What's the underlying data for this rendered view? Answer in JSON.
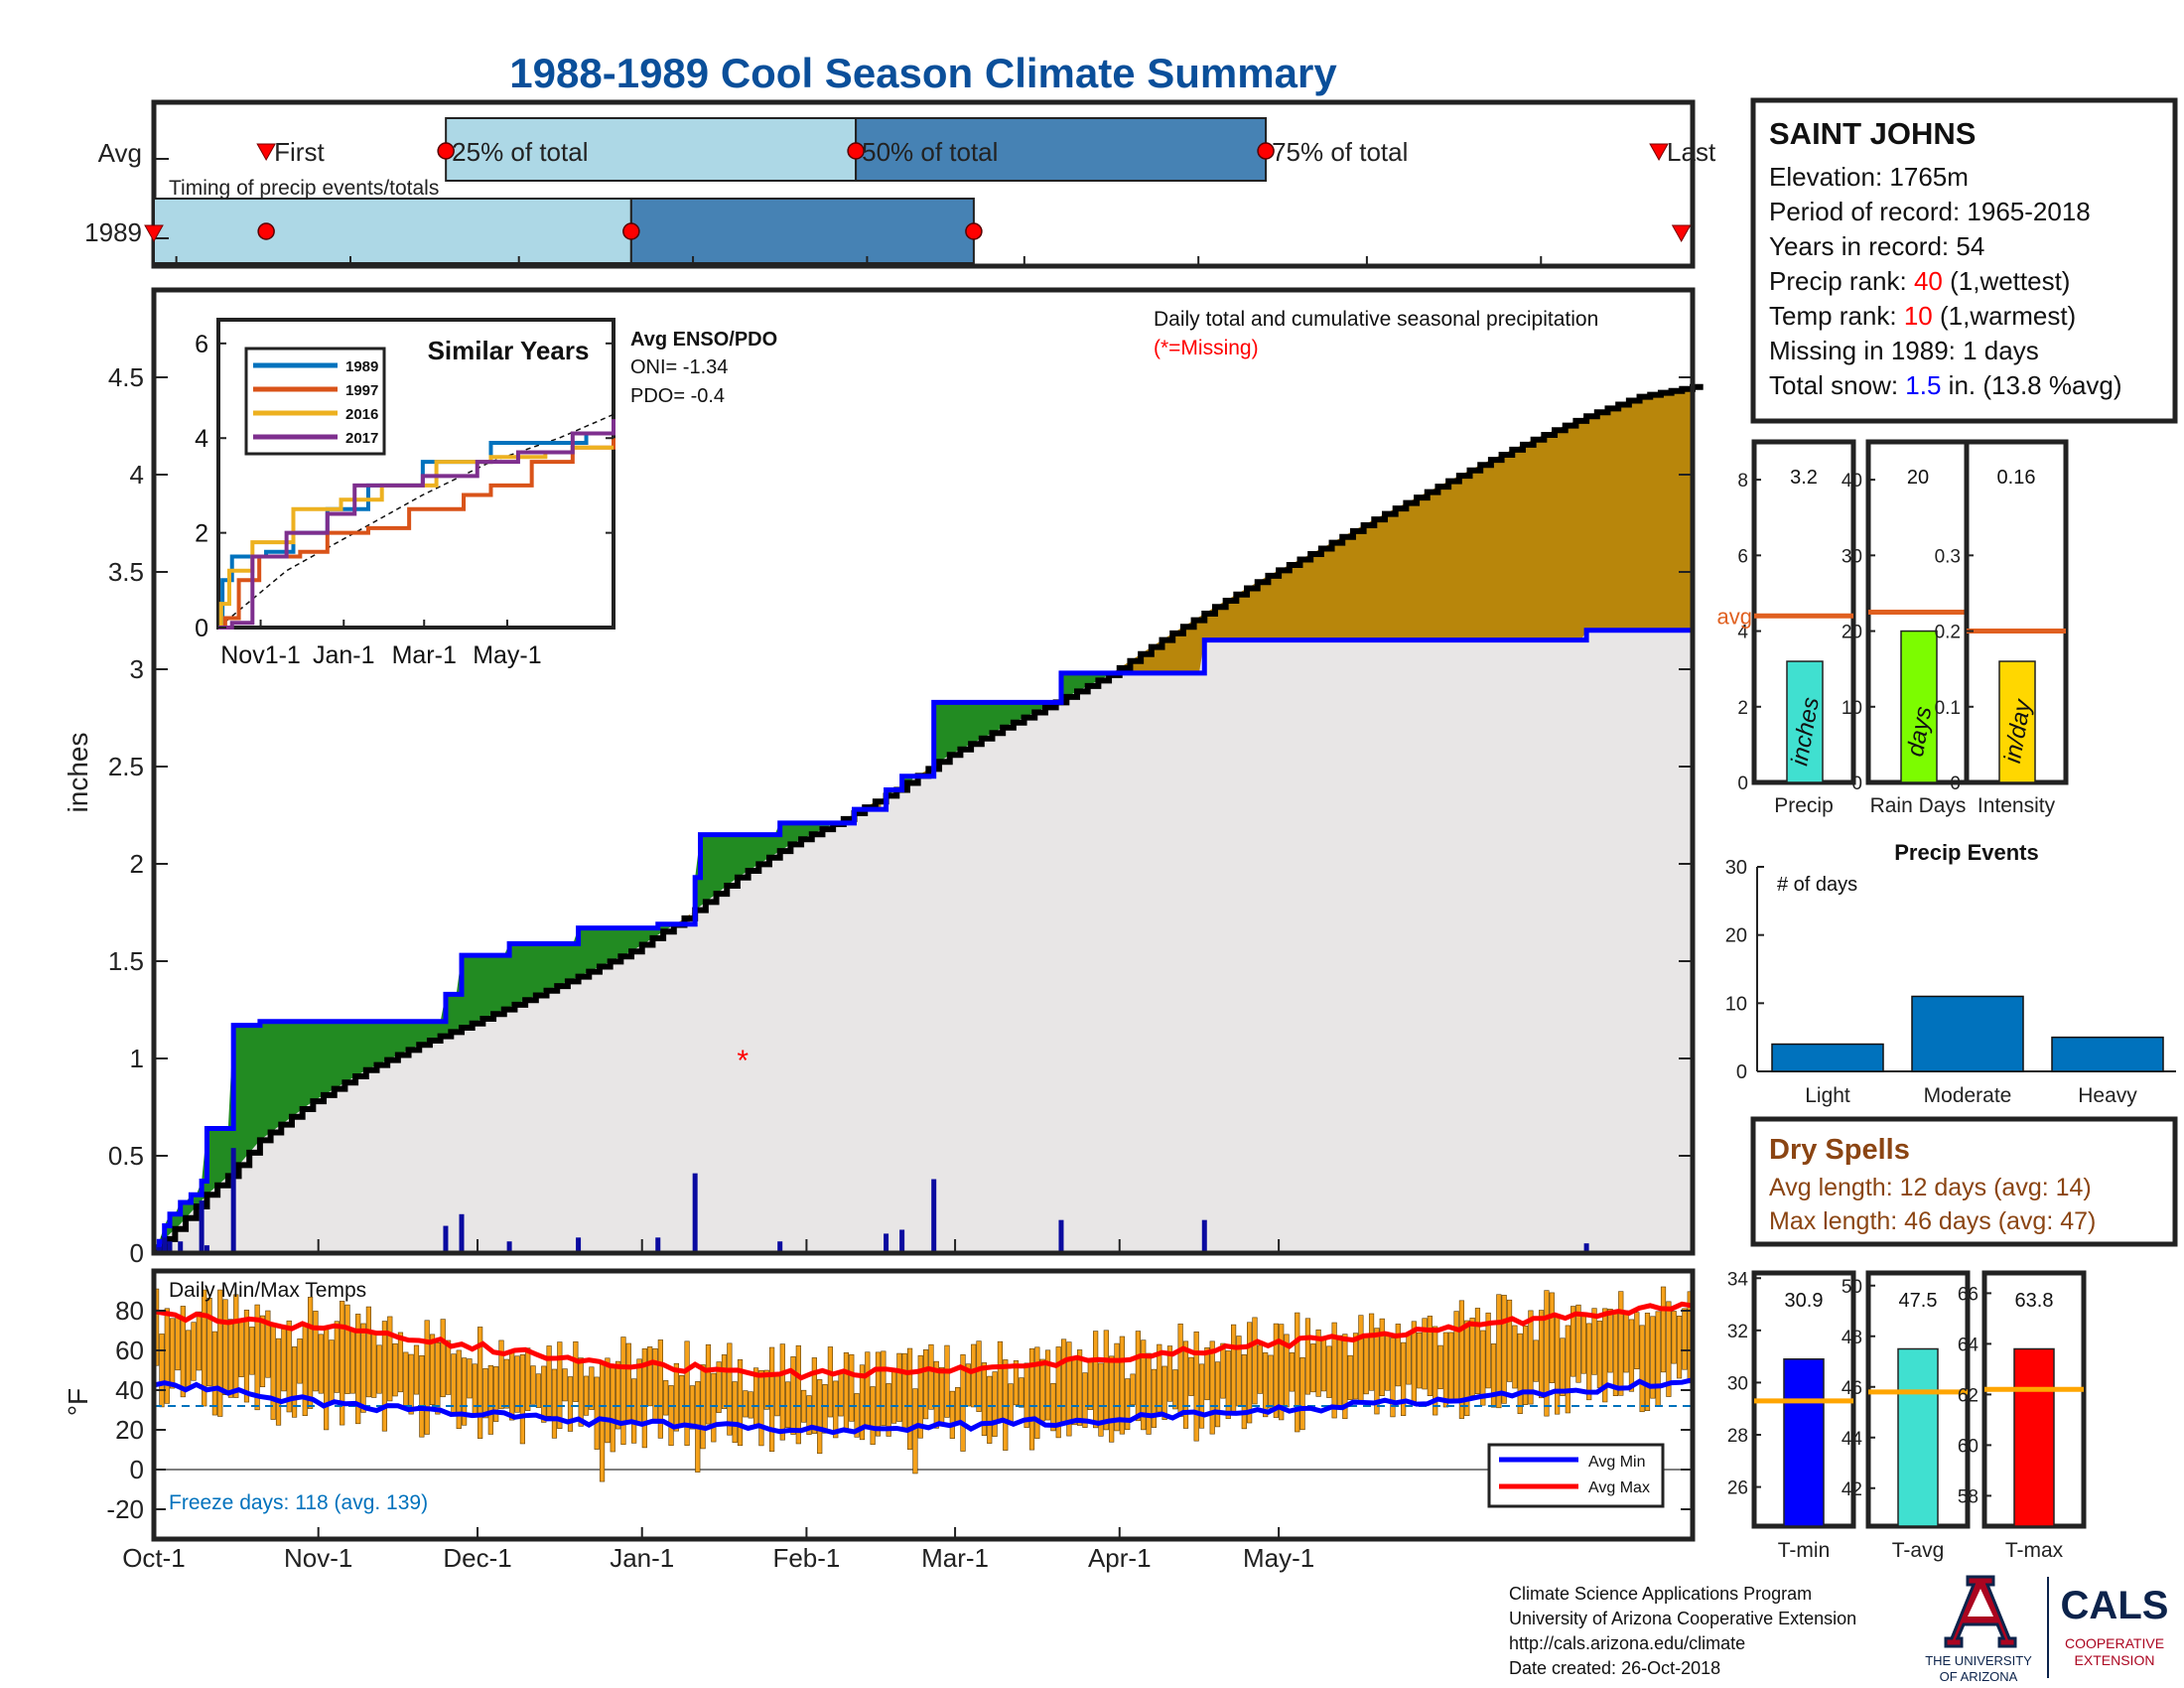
{
  "title": "1988-1989 Cool Season Climate Summary",
  "colors": {
    "title": "#0a4f9a",
    "light_box": "#add8e6",
    "dark_box": "#4682b4",
    "marker": "#ff0000",
    "below_avg_fill": "#228b22",
    "above_avg_fill": "#b8860b",
    "background_fill": "#e8e6e6",
    "cumulative_line": "#0000ff",
    "daily_bar": "#0a0aa0",
    "temp_bar": "#f5a11a",
    "avg_min": "#0000ff",
    "avg_max": "#ff0000",
    "avg_line": "#e06020",
    "snow_value": "#0000ff",
    "rank_value": "#ff0000",
    "dry_spells": "#8b4513",
    "precip_bar": "#40e0d0",
    "days_bar": "#7cfc00",
    "intensity_bar": "#ffd700",
    "events_bar": "#0072bd",
    "tmin_bar": "#0000ff",
    "tavg_bar": "#40e0d0",
    "tmax_bar": "#ff0000",
    "tbar_avg_line": "#ffa500",
    "freeze_text": "#0072bd"
  },
  "timing": {
    "row_labels": [
      "Avg",
      "1989"
    ],
    "marker_labels": {
      "first": "First",
      "p25": "25% of total",
      "p50": "50% of total",
      "p75": "75% of total",
      "last": "Last"
    },
    "note": "Timing of precip events/totals",
    "avg_days": {
      "first": 16,
      "p25": 48,
      "p50": 121,
      "p75": 194,
      "last": 264
    },
    "year_days": {
      "first": -4,
      "p25": 16,
      "p50": 81,
      "p75": 142,
      "last": 268
    }
  },
  "precip_panel": {
    "ylabel": "inches",
    "yticks": [
      "0",
      "0.5",
      "1",
      "1.5",
      "2",
      "2.5",
      "3",
      "3.5",
      "4",
      "4.5"
    ],
    "annotation": "Daily total and cumulative seasonal precipitation",
    "missing_note": "(*=Missing)",
    "missing_marker": "*",
    "missing_point": {
      "day": 111,
      "value": 1.0
    },
    "avg_cumulative": [
      [
        0,
        0.02
      ],
      [
        5,
        0.15
      ],
      [
        10,
        0.3
      ],
      [
        15,
        0.42
      ],
      [
        20,
        0.58
      ],
      [
        30,
        0.78
      ],
      [
        40,
        0.94
      ],
      [
        50,
        1.07
      ],
      [
        60,
        1.18
      ],
      [
        70,
        1.3
      ],
      [
        80,
        1.42
      ],
      [
        90,
        1.55
      ],
      [
        100,
        1.72
      ],
      [
        110,
        1.93
      ],
      [
        120,
        2.1
      ],
      [
        130,
        2.23
      ],
      [
        140,
        2.38
      ],
      [
        150,
        2.56
      ],
      [
        160,
        2.7
      ],
      [
        170,
        2.83
      ],
      [
        180,
        2.97
      ],
      [
        190,
        3.15
      ],
      [
        200,
        3.32
      ],
      [
        210,
        3.48
      ],
      [
        220,
        3.62
      ],
      [
        230,
        3.77
      ],
      [
        240,
        3.91
      ],
      [
        250,
        4.05
      ],
      [
        260,
        4.18
      ],
      [
        270,
        4.3
      ],
      [
        280,
        4.4
      ],
      [
        290,
        4.45
      ]
    ],
    "cumulative_1989": [
      [
        0,
        0.03
      ],
      [
        1,
        0.06
      ],
      [
        2,
        0.14
      ],
      [
        3,
        0.2
      ],
      [
        5,
        0.26
      ],
      [
        7,
        0.3
      ],
      [
        9,
        0.37
      ],
      [
        10,
        0.64
      ],
      [
        15,
        0.64
      ],
      [
        15,
        1.17
      ],
      [
        20,
        1.19
      ],
      [
        55,
        1.19
      ],
      [
        55,
        1.33
      ],
      [
        58,
        1.33
      ],
      [
        58,
        1.53
      ],
      [
        67,
        1.53
      ],
      [
        67,
        1.59
      ],
      [
        80,
        1.59
      ],
      [
        80,
        1.67
      ],
      [
        95,
        1.67
      ],
      [
        95,
        1.69
      ],
      [
        102,
        1.69
      ],
      [
        102,
        1.93
      ],
      [
        103,
        2.15
      ],
      [
        118,
        2.15
      ],
      [
        118,
        2.21
      ],
      [
        132,
        2.21
      ],
      [
        132,
        2.28
      ],
      [
        138,
        2.28
      ],
      [
        138,
        2.38
      ],
      [
        141,
        2.38
      ],
      [
        141,
        2.45
      ],
      [
        147,
        2.45
      ],
      [
        147,
        2.83
      ],
      [
        171,
        2.83
      ],
      [
        171,
        2.98
      ],
      [
        198,
        2.98
      ],
      [
        198,
        3.15
      ],
      [
        270,
        3.15
      ],
      [
        270,
        3.2
      ],
      [
        290,
        3.2
      ]
    ],
    "daily_1989": [
      [
        1,
        0.03
      ],
      [
        2,
        0.08
      ],
      [
        3,
        0.06
      ],
      [
        5,
        0.06
      ],
      [
        9,
        0.27
      ],
      [
        10,
        0.04
      ],
      [
        15,
        0.54
      ],
      [
        55,
        0.14
      ],
      [
        58,
        0.2
      ],
      [
        67,
        0.06
      ],
      [
        80,
        0.08
      ],
      [
        95,
        0.08
      ],
      [
        102,
        0.41
      ],
      [
        118,
        0.06
      ],
      [
        138,
        0.1
      ],
      [
        141,
        0.12
      ],
      [
        147,
        0.38
      ],
      [
        171,
        0.17
      ],
      [
        198,
        0.17
      ],
      [
        270,
        0.05
      ]
    ]
  },
  "inset": {
    "title": "Similar Years",
    "legend": [
      "1989",
      "1997",
      "2016",
      "2017"
    ],
    "legend_colors": [
      "#0072bd",
      "#d95319",
      "#edb120",
      "#7e2f8e"
    ],
    "yticks": [
      "0",
      "2",
      "4",
      "6"
    ],
    "xticks": [
      "Nov1-1",
      "Jan-1",
      "Mar-1",
      "May-1"
    ],
    "series": [
      {
        "name": "1989",
        "points": [
          [
            0,
            0
          ],
          [
            3,
            1
          ],
          [
            10,
            1.5
          ],
          [
            35,
            1.6
          ],
          [
            55,
            2.0
          ],
          [
            80,
            2.5
          ],
          [
            110,
            3.0
          ],
          [
            150,
            3.5
          ],
          [
            200,
            3.9
          ],
          [
            270,
            4.1
          ],
          [
            290,
            4.1
          ]
        ]
      },
      {
        "name": "1997",
        "points": [
          [
            0,
            0
          ],
          [
            5,
            0.2
          ],
          [
            15,
            1.0
          ],
          [
            30,
            1.5
          ],
          [
            60,
            1.6
          ],
          [
            80,
            2.0
          ],
          [
            110,
            2.1
          ],
          [
            140,
            2.5
          ],
          [
            180,
            2.8
          ],
          [
            200,
            3.0
          ],
          [
            230,
            3.5
          ],
          [
            260,
            3.8
          ],
          [
            290,
            4.0
          ]
        ]
      },
      {
        "name": "2016",
        "points": [
          [
            0,
            0
          ],
          [
            2,
            0.5
          ],
          [
            8,
            1.2
          ],
          [
            25,
            1.8
          ],
          [
            55,
            2.5
          ],
          [
            90,
            2.7
          ],
          [
            120,
            3.0
          ],
          [
            160,
            3.5
          ],
          [
            200,
            3.6
          ],
          [
            240,
            3.7
          ],
          [
            260,
            3.8
          ],
          [
            290,
            3.8
          ]
        ]
      },
      {
        "name": "2017",
        "points": [
          [
            0,
            0
          ],
          [
            10,
            0.1
          ],
          [
            25,
            1.5
          ],
          [
            50,
            2.0
          ],
          [
            80,
            2.4
          ],
          [
            100,
            3.0
          ],
          [
            150,
            3.2
          ],
          [
            190,
            3.5
          ],
          [
            220,
            3.7
          ],
          [
            260,
            4.1
          ],
          [
            290,
            4.4
          ]
        ]
      }
    ],
    "avg_dashed": [
      [
        0,
        0
      ],
      [
        50,
        1.2
      ],
      [
        100,
        2.0
      ],
      [
        150,
        2.8
      ],
      [
        200,
        3.5
      ],
      [
        250,
        4.0
      ],
      [
        290,
        4.5
      ]
    ]
  },
  "enso": {
    "header": "Avg ENSO/PDO",
    "oni": "ONI= -1.34",
    "pdo": "PDO= -0.4"
  },
  "temp_panel": {
    "title": "Daily Min/Max Temps",
    "ylabel": "°F",
    "yticks": [
      "-20",
      "0",
      "20",
      "40",
      "60",
      "80"
    ],
    "freeze_text": "Freeze days: 118 (avg. 139)",
    "legend": [
      "Avg Min",
      "Avg Max"
    ],
    "freeze_line": 32,
    "avg_min": [
      [
        0,
        44
      ],
      [
        30,
        34
      ],
      [
        60,
        28
      ],
      [
        90,
        23
      ],
      [
        120,
        20
      ],
      [
        150,
        22
      ],
      [
        180,
        25
      ],
      [
        210,
        30
      ],
      [
        240,
        34
      ],
      [
        270,
        40
      ],
      [
        290,
        45
      ]
    ],
    "avg_max": [
      [
        0,
        78
      ],
      [
        30,
        72
      ],
      [
        60,
        62
      ],
      [
        90,
        53
      ],
      [
        120,
        48
      ],
      [
        150,
        50
      ],
      [
        180,
        56
      ],
      [
        210,
        63
      ],
      [
        240,
        70
      ],
      [
        270,
        78
      ],
      [
        290,
        83
      ]
    ]
  },
  "x_axis": {
    "ticks": [
      "Oct-1",
      "Nov-1",
      "Dec-1",
      "Jan-1",
      "Feb-1",
      "Mar-1",
      "Apr-1",
      "May-1"
    ],
    "tick_days": [
      0,
      31,
      61,
      92,
      123,
      151,
      182,
      212
    ]
  },
  "station": {
    "name": "SAINT JOHNS",
    "elevation": "Elevation: 1765m",
    "period": "Period of record: 1965-2018",
    "years": "Years in record: 54",
    "precip_rank_label": "Precip rank: ",
    "precip_rank_value": "40",
    "precip_rank_note": " (1,wettest)",
    "temp_rank_label": "Temp rank: ",
    "temp_rank_value": "10",
    "temp_rank_note": " (1,warmest)",
    "missing": "Missing in 1989: 1 days",
    "snow_label": "Total snow: ",
    "snow_value": "1.5",
    "snow_note": " in. (13.8 %avg)"
  },
  "small_bars": [
    {
      "label": "Precip",
      "value": 3.2,
      "value_text": "3.2",
      "unit": "inches",
      "ylim": [
        0,
        9
      ],
      "yticks": [
        "0",
        "2",
        "4",
        "6",
        "8"
      ],
      "avg": 4.4,
      "avg_label": "avg"
    },
    {
      "label": "Rain Days",
      "value": 20,
      "value_text": "20",
      "unit": "days",
      "ylim": [
        0,
        45
      ],
      "yticks": [
        "0",
        "10",
        "20",
        "30",
        "40"
      ],
      "avg": 22.5
    },
    {
      "label": "Intensity",
      "value": 0.16,
      "value_text": "0.16",
      "unit": "in/day",
      "ylim": [
        0,
        0.45
      ],
      "yticks": [
        "0",
        "0.1",
        "0.2",
        "0.3"
      ],
      "avg": 0.2
    }
  ],
  "precip_events": {
    "title": "Precip Events",
    "ylabel": "# of days",
    "categories": [
      "Light",
      "Moderate",
      "Heavy"
    ],
    "values": [
      4,
      11,
      5
    ],
    "ylim": [
      0,
      30
    ],
    "yticks": [
      "0",
      "10",
      "20",
      "30"
    ]
  },
  "dry_spells": {
    "title": "Dry Spells",
    "avg_length": "Avg length: 12 days (avg: 14)",
    "max_length": "Max length: 46 days (avg: 47)"
  },
  "temp_bars": [
    {
      "label": "T-min",
      "value": 30.9,
      "value_text": "30.9",
      "ylim": [
        24.5,
        34.2
      ],
      "yticks": [
        "26",
        "28",
        "30",
        "32",
        "34"
      ],
      "avg": 29.3
    },
    {
      "label": "T-avg",
      "value": 47.5,
      "value_text": "47.5",
      "ylim": [
        40.5,
        50.5
      ],
      "yticks": [
        "42",
        "44",
        "46",
        "48",
        "50"
      ],
      "avg": 45.8
    },
    {
      "label": "T-max",
      "value": 63.8,
      "value_text": "63.8",
      "ylim": [
        56.8,
        66.8
      ],
      "yticks": [
        "58",
        "60",
        "62",
        "64",
        "66"
      ],
      "avg": 62.2
    }
  ],
  "footer": {
    "line1": "Climate Science Applications Program",
    "line2": "University of Arizona Cooperative Extension",
    "line3": "http://cals.arizona.edu/climate",
    "line4": " Date created: 26-Oct-2018"
  },
  "logos": {
    "ua_line1": "THE UNIVERSITY",
    "ua_line2": "OF ARIZONA",
    "cals": "CALS",
    "cals_line1": "COOPERATIVE",
    "cals_line2": "EXTENSION"
  }
}
